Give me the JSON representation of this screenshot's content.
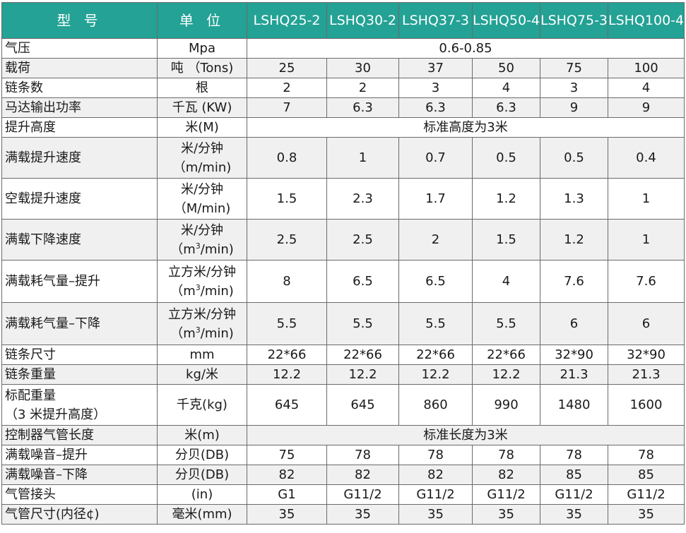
{
  "header": {
    "model": "型 号",
    "unit": "单 位",
    "models": [
      "LSHQ25-2",
      "LSHQ30-2",
      "LSHQ37-3",
      "LSHQ50-4",
      "LSHQ75-3",
      "LSHQ100-4"
    ]
  },
  "rows": [
    {
      "param": "气压",
      "unit": "Mpa",
      "merged": "0.6-0.85"
    },
    {
      "param": "载荷",
      "unit": "吨 （Tons)",
      "values": [
        "25",
        "30",
        "37",
        "50",
        "75",
        "100"
      ]
    },
    {
      "param": "链条数",
      "unit": "根",
      "values": [
        "2",
        "2",
        "3",
        "4",
        "3",
        "4"
      ]
    },
    {
      "param": "马达输出功率",
      "unit": "千瓦 (KW)",
      "values": [
        "7",
        "6.3",
        "6.3",
        "6.3",
        "9",
        "9"
      ]
    },
    {
      "param": "提升高度",
      "unit": "米(M)",
      "merged": "标准高度为3米"
    },
    {
      "param": "满载提升速度",
      "unit": [
        "米/分钟",
        "（m/min)"
      ],
      "values": [
        "0.8",
        "1",
        "0.7",
        "0.5",
        "0.5",
        "0.4"
      ]
    },
    {
      "param": "空载提升速度",
      "unit": [
        "米/分钟",
        "（M/min)"
      ],
      "values": [
        "1.5",
        "2.3",
        "1.7",
        "1.2",
        "1.3",
        "1"
      ]
    },
    {
      "param": "满载下降速度",
      "unit": [
        "米/分钟",
        "（m",
        "3",
        "/min)"
      ],
      "values": [
        "2.5",
        "2.5",
        "2",
        "1.5",
        "1.2",
        "1"
      ]
    },
    {
      "param": "满载耗气量–提升",
      "unit": [
        "立方米/分钟",
        "（m",
        "3",
        "/min)"
      ],
      "values": [
        "8",
        "6.5",
        "6.5",
        "4",
        "7.6",
        "7.6"
      ]
    },
    {
      "param": "满载耗气量–下降",
      "unit": [
        "立方米/分钟",
        "（m",
        "3",
        "/min)"
      ],
      "values": [
        "5.5",
        "5.5",
        "5.5",
        "5.5",
        "6",
        "6"
      ]
    },
    {
      "param": "链条尺寸",
      "unit": "mm",
      "values": [
        "22*66",
        "22*66",
        "22*66",
        "22*66",
        "32*90",
        "32*90"
      ]
    },
    {
      "param": "链条重量",
      "unit": "kg/米",
      "values": [
        "12.2",
        "12.2",
        "12.2",
        "12.2",
        "21.3",
        "21.3"
      ]
    },
    {
      "param": [
        "标配重量",
        "（3 米提升高度）"
      ],
      "unit": "千克(kg)",
      "values": [
        "645",
        "645",
        "860",
        "990",
        "1480",
        "1600"
      ]
    },
    {
      "param": "控制器气管长度",
      "unit": "米(m)",
      "merged": "标准长度为3米"
    },
    {
      "param": "满载噪音–提升",
      "unit": "分贝(DB)",
      "values": [
        "75",
        "78",
        "78",
        "78",
        "78",
        "78"
      ]
    },
    {
      "param": "满载噪音–下降",
      "unit": "分贝(DB)",
      "values": [
        "82",
        "82",
        "82",
        "82",
        "85",
        "85"
      ]
    },
    {
      "param": "气管接头",
      "unit": "(in)",
      "values": [
        "G1",
        "G11/2",
        "G11/2",
        "G11/2",
        "G11/2",
        "G11/2"
      ]
    },
    {
      "param": "气管尺寸(内径¢)",
      "unit": "毫米(mm)",
      "values": [
        "35",
        "35",
        "35",
        "35",
        "35",
        "35"
      ]
    }
  ],
  "colors": {
    "header_bg": "#23a295",
    "header_text": "#ffffff",
    "alt_row": "#f0f0f0",
    "border": "#6a6a6a"
  }
}
